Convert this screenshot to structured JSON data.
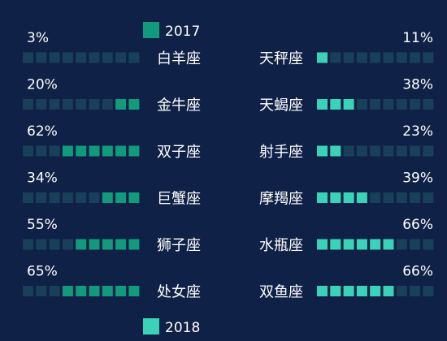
{
  "colors": {
    "background": "#0f2146",
    "series_2017": "#129a7c",
    "series_2018": "#3bd3b7",
    "empty_cell": "#19405a"
  },
  "chart_data": [
    {
      "type": "bar",
      "series": [
        {
          "name": "2017",
          "categories": [
            "白羊座",
            "金牛座",
            "双子座",
            "巨蟹座",
            "狮子座",
            "处女座"
          ],
          "values": [
            3,
            20,
            62,
            34,
            55,
            65
          ],
          "labels": [
            "3%",
            "20%",
            "62%",
            "34%",
            "55%",
            "65%"
          ]
        },
        {
          "name": "2018",
          "categories": [
            "天秤座",
            "天蝎座",
            "射手座",
            "摩羯座",
            "水瓶座",
            "双鱼座"
          ],
          "values": [
            11,
            38,
            23,
            39,
            66,
            66
          ],
          "labels": [
            "11%",
            "38%",
            "23%",
            "39%",
            "66%",
            "66%"
          ]
        }
      ],
      "ylim": [
        0,
        100
      ],
      "cells_per_bar": 9,
      "legend": [
        "2017",
        "2018"
      ]
    }
  ]
}
